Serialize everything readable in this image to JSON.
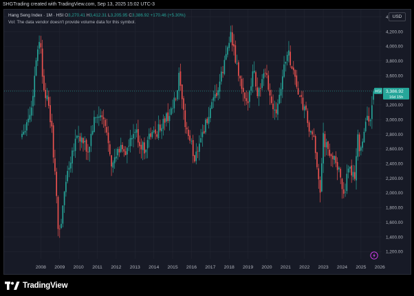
{
  "top_caption": "SHGTrading created with TradingView.com, Sep 13, 2025 15:02 UTC-3",
  "legend": {
    "symbol": "Hang Seng Index · 1M · HSI",
    "o_label": "O",
    "o_value": "3,270.41",
    "h_label": "H",
    "h_value": "3,412.31",
    "l_label": "L",
    "l_value": "3,205.95",
    "c_label": "C",
    "c_value": "3,386.92",
    "change": "+170.46 (+5.30%)"
  },
  "volume_note": "Vol: The data vendor doesn't provide volume data for this symbol.",
  "currency": "USD",
  "price_tag": {
    "symbol": "HSI",
    "price": "3,386.92",
    "countdown": "16d 15h"
  },
  "footer": {
    "brand": "TradingView"
  },
  "colors": {
    "up": "#26a69a",
    "down": "#ef5350",
    "background": "#171a26",
    "grid": "#232632",
    "text": "#d1d4dc"
  },
  "icons": [
    "tradingview-logo-icon",
    "lightning-icon"
  ],
  "chart_data": {
    "type": "candlestick",
    "interval": "1M",
    "title": "Hang Seng Index · 1M · HSI",
    "ylim": [
      1100,
      4500
    ],
    "y_ticks": [
      "1,200.00",
      "1,400.00",
      "1,600.00",
      "1,800.00",
      "2,000.00",
      "2,200.00",
      "2,400.00",
      "2,600.00",
      "2,800.00",
      "3,000.00",
      "3,200.00",
      "3,400.00",
      "3,600.00",
      "3,800.00",
      "4,000.00",
      "4,200.00",
      "4,400.00"
    ],
    "y_tick_values": [
      1200,
      1400,
      1600,
      1800,
      2000,
      2200,
      2400,
      2600,
      2800,
      3000,
      3200,
      3400,
      3600,
      3800,
      4000,
      4200,
      4400
    ],
    "x_ticks": [
      "2008",
      "2009",
      "2010",
      "2011",
      "2012",
      "2013",
      "2014",
      "2015",
      "2016",
      "2017",
      "2018",
      "2019",
      "2020",
      "2021",
      "2022",
      "2023",
      "2024",
      "2025",
      "2026"
    ],
    "x_range": [
      2007.0,
      2026.1
    ],
    "last": {
      "open": 3270.41,
      "high": 3412.31,
      "low": 3205.95,
      "close": 3386.92
    },
    "path_points": [
      [
        2007.0,
        2820
      ],
      [
        2007.3,
        3000
      ],
      [
        2007.5,
        3150
      ],
      [
        2007.8,
        3950
      ],
      [
        2007.95,
        4150
      ],
      [
        2008.1,
        3550
      ],
      [
        2008.3,
        3300
      ],
      [
        2008.55,
        2950
      ],
      [
        2008.8,
        2100
      ],
      [
        2008.9,
        1500
      ],
      [
        2009.1,
        1600
      ],
      [
        2009.3,
        2150
      ],
      [
        2009.6,
        2500
      ],
      [
        2009.9,
        2800
      ],
      [
        2010.2,
        2700
      ],
      [
        2010.5,
        2550
      ],
      [
        2010.8,
        2950
      ],
      [
        2011.0,
        3050
      ],
      [
        2011.3,
        3000
      ],
      [
        2011.6,
        2700
      ],
      [
        2011.8,
        2350
      ],
      [
        2012.0,
        2500
      ],
      [
        2012.3,
        2650
      ],
      [
        2012.5,
        2550
      ],
      [
        2012.8,
        2700
      ],
      [
        2013.0,
        2850
      ],
      [
        2013.3,
        2650
      ],
      [
        2013.5,
        2600
      ],
      [
        2013.8,
        2800
      ],
      [
        2014.0,
        2800
      ],
      [
        2014.2,
        2850
      ],
      [
        2014.6,
        3000
      ],
      [
        2014.9,
        3100
      ],
      [
        2015.2,
        3300
      ],
      [
        2015.35,
        3600
      ],
      [
        2015.5,
        3200
      ],
      [
        2015.7,
        2900
      ],
      [
        2016.0,
        2650
      ],
      [
        2016.15,
        2450
      ],
      [
        2016.4,
        2700
      ],
      [
        2016.7,
        2900
      ],
      [
        2017.0,
        3100
      ],
      [
        2017.4,
        3400
      ],
      [
        2017.7,
        3700
      ],
      [
        2017.95,
        4050
      ],
      [
        2018.05,
        4200
      ],
      [
        2018.3,
        3850
      ],
      [
        2018.6,
        3500
      ],
      [
        2018.9,
        3150
      ],
      [
        2019.1,
        3450
      ],
      [
        2019.3,
        3700
      ],
      [
        2019.5,
        3350
      ],
      [
        2019.8,
        3550
      ],
      [
        2020.0,
        3600
      ],
      [
        2020.2,
        3250
      ],
      [
        2020.5,
        3150
      ],
      [
        2020.7,
        3400
      ],
      [
        2020.9,
        3700
      ],
      [
        2021.1,
        3950
      ],
      [
        2021.3,
        3750
      ],
      [
        2021.5,
        3600
      ],
      [
        2021.7,
        3300
      ],
      [
        2021.9,
        3200
      ],
      [
        2022.1,
        3050
      ],
      [
        2022.3,
        2800
      ],
      [
        2022.5,
        2700
      ],
      [
        2022.7,
        2350
      ],
      [
        2022.85,
        2000
      ],
      [
        2023.0,
        2750
      ],
      [
        2023.2,
        2600
      ],
      [
        2023.4,
        2450
      ],
      [
        2023.6,
        2550
      ],
      [
        2023.8,
        2300
      ],
      [
        2024.0,
        2100
      ],
      [
        2024.1,
        2000
      ],
      [
        2024.3,
        2250
      ],
      [
        2024.5,
        2300
      ],
      [
        2024.7,
        2250
      ],
      [
        2024.8,
        2800
      ],
      [
        2024.95,
        2600
      ],
      [
        2025.1,
        2750
      ],
      [
        2025.3,
        3000
      ],
      [
        2025.5,
        3050
      ],
      [
        2025.65,
        3200
      ],
      [
        2025.7,
        3386.92
      ]
    ]
  }
}
